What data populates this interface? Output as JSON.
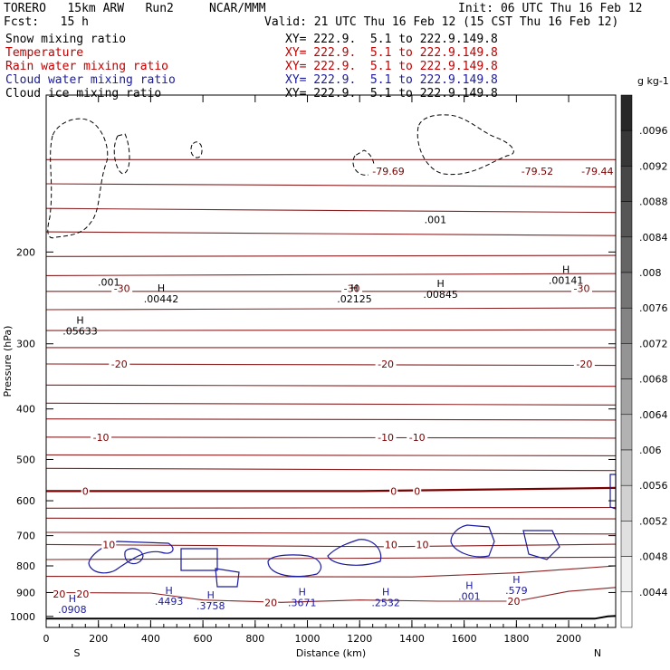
{
  "header": {
    "model": "TORERO",
    "grid": "15km ARW",
    "run": "Run2",
    "org": "NCAR/MMM",
    "init": "Init: 06 UTC Thu 16 Feb 12",
    "fcst_label": "Fcst:",
    "fcst_value": "15 h",
    "valid": "Valid: 21 UTC Thu 16 Feb 12 (15 CST Thu 16 Feb 12)"
  },
  "fields": [
    {
      "name": "Snow mixing ratio",
      "xy": "XY= 222.9.  5.1 to 222.9.149.8",
      "color": "#000000"
    },
    {
      "name": "Temperature",
      "xy": "XY= 222.9.  5.1 to 222.9.149.8",
      "color": "#c00000"
    },
    {
      "name": "Rain water mixing ratio",
      "xy": "XY= 222.9.  5.1 to 222.9.149.8",
      "color": "#c00000"
    },
    {
      "name": "Cloud water mixing ratio",
      "xy": "XY= 222.9.  5.1 to 222.9.149.8",
      "color": "#1a1aa0"
    },
    {
      "name": "Cloud ice mixing ratio",
      "xy": "XY= 222.9.  5.1 to 222.9.149.8",
      "color": "#000000"
    }
  ],
  "chart_data": {
    "type": "line",
    "title": "",
    "xlabel": "Distance (km)",
    "ylabel": "Pressure (hPa)",
    "xlim": [
      0,
      2180
    ],
    "ylim": [
      1050,
      100
    ],
    "y_scale": "log",
    "x_ticks": [
      0,
      200,
      400,
      600,
      800,
      1000,
      1200,
      1400,
      1600,
      1800,
      2000
    ],
    "y_ticks": [
      200,
      300,
      400,
      500,
      600,
      700,
      800,
      900,
      1000
    ],
    "end_labels": {
      "left": "S",
      "right": "N"
    },
    "temperature_isotherm_labels": [
      {
        "text": "-30",
        "x": 290,
        "p": 235
      },
      {
        "text": "-30",
        "x": 1170,
        "p": 235
      },
      {
        "text": "-30",
        "x": 2050,
        "p": 235
      },
      {
        "text": "-20",
        "x": 280,
        "p": 328
      },
      {
        "text": "-20",
        "x": 1300,
        "p": 328
      },
      {
        "text": "-20",
        "x": 2060,
        "p": 328
      },
      {
        "text": "-10",
        "x": 210,
        "p": 453
      },
      {
        "text": "-10",
        "x": 1300,
        "p": 453
      },
      {
        "text": "-10",
        "x": 1420,
        "p": 453
      },
      {
        "text": "0",
        "x": 150,
        "p": 575
      },
      {
        "text": "0",
        "x": 1330,
        "p": 575
      },
      {
        "text": "0",
        "x": 1420,
        "p": 575
      },
      {
        "text": "10",
        "x": 240,
        "p": 728
      },
      {
        "text": "10",
        "x": 1320,
        "p": 728
      },
      {
        "text": "10",
        "x": 1440,
        "p": 728
      },
      {
        "text": "20",
        "x": 50,
        "p": 905
      },
      {
        "text": "20",
        "x": 140,
        "p": 905
      },
      {
        "text": "20",
        "x": 860,
        "p": 940
      },
      {
        "text": "20",
        "x": 1790,
        "p": 935
      },
      {
        "text": "-79.69",
        "x": 1310,
        "p": 140
      },
      {
        "text": "-79.52",
        "x": 1880,
        "p": 140
      },
      {
        "text": "-79.44",
        "x": 2110,
        "p": 140
      }
    ],
    "max_labels": [
      {
        "text": ".00442",
        "x": 440,
        "p": 250,
        "color": "#000000"
      },
      {
        "text": ".02125",
        "x": 1180,
        "p": 250,
        "color": "#000000"
      },
      {
        "text": ".00845",
        "x": 1510,
        "p": 245,
        "color": "#000000"
      },
      {
        "text": ".00141",
        "x": 1990,
        "p": 230,
        "color": "#000000"
      },
      {
        "text": ".05633",
        "x": 130,
        "p": 288,
        "color": "#000000"
      },
      {
        "text": ".4493",
        "x": 470,
        "p": 950,
        "color": "#1a1aa0"
      },
      {
        "text": ".3758",
        "x": 630,
        "p": 970,
        "color": "#1a1aa0"
      },
      {
        "text": ".3671",
        "x": 980,
        "p": 955,
        "color": "#1a1aa0"
      },
      {
        "text": ".2532",
        "x": 1300,
        "p": 955,
        "color": "#1a1aa0"
      },
      {
        "text": ".0908",
        "x": 100,
        "p": 985,
        "color": "#1a1aa0"
      },
      {
        "text": ".579",
        "x": 1800,
        "p": 905,
        "color": "#1a1aa0"
      },
      {
        "text": ".001",
        "x": 1620,
        "p": 930,
        "color": "#1a1aa0"
      }
    ],
    "contour_labels": [
      {
        "text": ".001",
        "x": 240,
        "p": 232
      },
      {
        "text": ".001",
        "x": 1490,
        "p": 176
      }
    ],
    "isotherms": [
      {
        "name": "-60",
        "values": [
          [
            0,
            133
          ],
          [
            2180,
            133
          ]
        ]
      },
      {
        "name": "-55",
        "values": [
          [
            0,
            148
          ],
          [
            2180,
            150
          ]
        ]
      },
      {
        "name": "-50",
        "values": [
          [
            0,
            165
          ],
          [
            2180,
            168
          ]
        ]
      },
      {
        "name": "-45",
        "values": [
          [
            0,
            183
          ],
          [
            2180,
            186
          ]
        ]
      },
      {
        "name": "-40",
        "values": [
          [
            0,
            204
          ],
          [
            2180,
            203
          ]
        ]
      },
      {
        "name": "-38",
        "values": [
          [
            0,
            222
          ],
          [
            2180,
            220
          ]
        ]
      },
      {
        "name": "-35",
        "values": [
          [
            0,
            238
          ],
          [
            800,
            238
          ],
          [
            2180,
            238
          ]
        ]
      },
      {
        "name": "-28",
        "values": [
          [
            0,
            258
          ],
          [
            2180,
            256
          ]
        ]
      },
      {
        "name": "-25",
        "values": [
          [
            0,
            283
          ],
          [
            2180,
            282
          ]
        ]
      },
      {
        "name": "-22",
        "values": [
          [
            0,
            305
          ],
          [
            2180,
            305
          ]
        ]
      },
      {
        "name": "-20",
        "values": [
          [
            0,
            328
          ],
          [
            2180,
            330
          ]
        ]
      },
      {
        "name": "-17",
        "values": [
          [
            0,
            360
          ],
          [
            2180,
            362
          ]
        ]
      },
      {
        "name": "-14",
        "values": [
          [
            0,
            390
          ],
          [
            2180,
            393
          ]
        ]
      },
      {
        "name": "-12",
        "values": [
          [
            0,
            418
          ],
          [
            2180,
            420
          ]
        ]
      },
      {
        "name": "-10",
        "values": [
          [
            0,
            453
          ],
          [
            2180,
            455
          ]
        ]
      },
      {
        "name": "-7",
        "values": [
          [
            0,
            490
          ],
          [
            2180,
            492
          ]
        ]
      },
      {
        "name": "-5",
        "values": [
          [
            0,
            520
          ],
          [
            2180,
            525
          ]
        ]
      },
      {
        "name": "0",
        "values": [
          [
            0,
            575
          ],
          [
            600,
            575
          ],
          [
            1200,
            575
          ],
          [
            2180,
            567
          ]
        ]
      },
      {
        "name": "3",
        "values": [
          [
            0,
            620
          ],
          [
            2180,
            618
          ]
        ]
      },
      {
        "name": "5",
        "values": [
          [
            0,
            648
          ],
          [
            2180,
            650
          ]
        ]
      },
      {
        "name": "8",
        "values": [
          [
            0,
            690
          ],
          [
            2180,
            695
          ]
        ]
      },
      {
        "name": "10",
        "values": [
          [
            0,
            728
          ],
          [
            1300,
            735
          ],
          [
            2180,
            727
          ]
        ]
      },
      {
        "name": "13",
        "values": [
          [
            0,
            778
          ],
          [
            2180,
            770
          ]
        ]
      },
      {
        "name": "15",
        "values": [
          [
            0,
            838
          ],
          [
            1400,
            840
          ],
          [
            1800,
            825
          ],
          [
            2180,
            800
          ]
        ]
      },
      {
        "name": "20",
        "values": [
          [
            0,
            900
          ],
          [
            400,
            902
          ],
          [
            600,
            930
          ],
          [
            900,
            940
          ],
          [
            1200,
            930
          ],
          [
            1500,
            935
          ],
          [
            1800,
            935
          ],
          [
            2000,
            895
          ],
          [
            2180,
            880
          ]
        ]
      }
    ],
    "surface_pressure": [
      [
        0,
        1010
      ],
      [
        1000,
        1010
      ],
      [
        2100,
        1010
      ],
      [
        2150,
        1000
      ],
      [
        2180,
        998
      ]
    ],
    "colorbar": {
      "label": "g kg-1",
      "ticks": [
        ".0096",
        ".0092",
        ".0088",
        ".0084",
        ".008",
        ".0076",
        ".0072",
        ".0068",
        ".0064",
        ".006",
        ".0056",
        ".0052",
        ".0048",
        ".0044"
      ]
    }
  }
}
